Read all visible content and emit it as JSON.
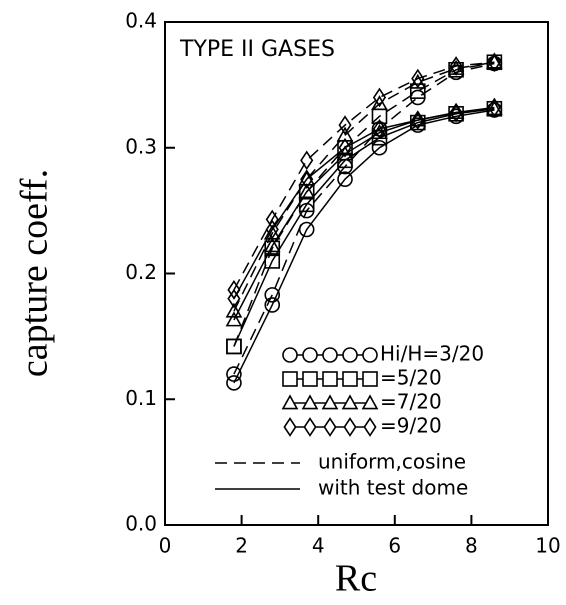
{
  "chart_data": {
    "type": "line",
    "title": "TYPE II GASES",
    "xlabel": "Rc",
    "ylabel": "capture coeff.",
    "x": [
      1.8,
      2.8,
      3.7,
      4.7,
      5.6,
      6.6,
      7.6,
      8.6
    ],
    "xlim": [
      0,
      10
    ],
    "xticks": [
      0,
      2,
      4,
      6,
      8,
      10
    ],
    "ylim": [
      0,
      0.4
    ],
    "yticks": [
      {
        "value": 0,
        "label": "0.0"
      },
      0.1,
      0.2,
      0.3,
      0.4
    ],
    "color": "#000000",
    "legend": "lower right",
    "series": [
      {
        "name": "Hi/H=3/20",
        "marker": "circle",
        "values_uniform": [
          0.12,
          0.183,
          0.25,
          0.285,
          0.315,
          0.34,
          0.36,
          0.367
        ],
        "values_dome": [
          0.113,
          0.175,
          0.235,
          0.275,
          0.3,
          0.318,
          0.325,
          0.33
        ]
      },
      {
        "name": "=5/20",
        "marker": "square",
        "values_uniform": [
          0.142,
          0.22,
          0.265,
          0.3,
          0.325,
          0.345,
          0.362,
          0.368
        ],
        "values_dome": [
          0.142,
          0.21,
          0.255,
          0.29,
          0.308,
          0.32,
          0.327,
          0.331
        ]
      },
      {
        "name": "=7/20",
        "marker": "triangle",
        "values_uniform": [
          0.17,
          0.232,
          0.275,
          0.31,
          0.335,
          0.352,
          0.363,
          0.368
        ],
        "values_dome": [
          0.163,
          0.222,
          0.265,
          0.295,
          0.312,
          0.322,
          0.328,
          0.331
        ]
      },
      {
        "name": "=9/20",
        "marker": "diamond",
        "values_uniform": [
          0.187,
          0.243,
          0.29,
          0.318,
          0.34,
          0.355,
          0.365,
          0.368
        ],
        "values_dome": [
          0.18,
          0.235,
          0.275,
          0.3,
          0.315,
          0.322,
          0.328,
          0.332
        ]
      }
    ],
    "line_styles": [
      {
        "name": "uniform,cosine",
        "key": "values_uniform",
        "dash": "12,7"
      },
      {
        "name": "with test dome",
        "key": "values_dome",
        "dash": "none"
      }
    ]
  }
}
